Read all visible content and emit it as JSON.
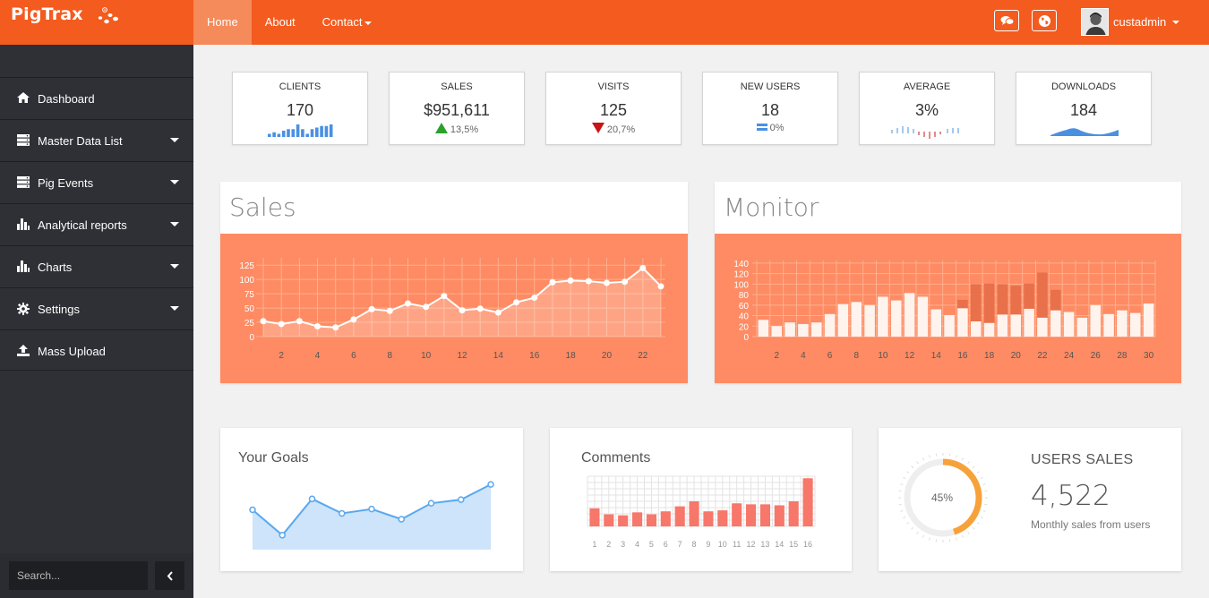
{
  "brand": {
    "name": "PigTrax"
  },
  "nav": {
    "items": [
      "Home",
      "About",
      "Contact"
    ]
  },
  "user": {
    "name": "custadmin"
  },
  "sidebar": {
    "items": [
      {
        "label": "Dashboard",
        "icon": "home-icon"
      },
      {
        "label": "Master Data List",
        "icon": "server-icon"
      },
      {
        "label": "Pig Events",
        "icon": "server-icon"
      },
      {
        "label": "Analytical reports",
        "icon": "bar-chart-icon"
      },
      {
        "label": "Charts",
        "icon": "bar-chart-icon"
      },
      {
        "label": "Settings",
        "icon": "gear-icon"
      },
      {
        "label": "Mass Upload",
        "icon": "upload-icon"
      }
    ],
    "search_placeholder": "Search..."
  },
  "stats": [
    {
      "title": "CLIENTS",
      "value": "170",
      "spark": [
        2,
        3,
        2,
        4,
        5,
        5,
        8,
        5,
        2,
        5,
        6,
        7,
        7,
        8
      ]
    },
    {
      "title": "SALES",
      "value": "$951,611",
      "change": "13,5%",
      "trend": "up"
    },
    {
      "title": "VISITS",
      "value": "125",
      "change": "20,7%",
      "trend": "down"
    },
    {
      "title": "NEW USERS",
      "value": "18",
      "change": "0%",
      "trend": "flat"
    },
    {
      "title": "AVERAGE",
      "value": "3%"
    },
    {
      "title": "DOWNLOADS",
      "value": "184"
    }
  ],
  "colors": {
    "accent": "#f35b1f",
    "panel": "#fe8b63",
    "up": "#2aa22a",
    "down": "#c81414",
    "blue": "#4a90e2",
    "donut": "#f7a13a"
  },
  "sales": {
    "title": "Sales",
    "chart_data": {
      "type": "area",
      "x": [
        1,
        2,
        3,
        4,
        5,
        6,
        7,
        8,
        9,
        10,
        11,
        12,
        13,
        14,
        15,
        16,
        17,
        18,
        19,
        20,
        21,
        22,
        23
      ],
      "values": [
        27,
        22,
        27,
        18,
        16,
        30,
        48,
        45,
        58,
        52,
        71,
        46,
        49,
        42,
        60,
        68,
        95,
        98,
        97,
        94,
        96,
        120,
        88
      ],
      "xticks": [
        "2",
        "4",
        "6",
        "8",
        "10",
        "12",
        "14",
        "16",
        "18",
        "20",
        "22"
      ],
      "yticks": [
        "0",
        "25",
        "50",
        "75",
        "100",
        "125"
      ],
      "ylim": [
        0,
        130
      ]
    }
  },
  "monitor": {
    "title": "Monitor",
    "chart_data": {
      "type": "bar",
      "x": [
        1,
        2,
        3,
        4,
        5,
        6,
        7,
        8,
        9,
        10,
        11,
        12,
        13,
        14,
        15,
        16,
        17,
        18,
        19,
        20,
        21,
        22,
        23,
        24,
        25,
        26,
        27,
        28,
        29,
        30
      ],
      "series": [
        {
          "values": [
            32,
            20,
            27,
            24,
            27,
            43,
            62,
            66,
            60,
            76,
            69,
            83,
            76,
            52,
            41,
            54,
            29,
            26,
            42,
            42,
            53,
            36,
            50,
            47,
            36,
            60,
            43,
            50,
            45,
            63
          ]
        },
        {
          "values": [
            0,
            0,
            0,
            0,
            0,
            0,
            0,
            0,
            0,
            0,
            0,
            68,
            0,
            0,
            0,
            70,
            100,
            101,
            100,
            97,
            101,
            122,
            89,
            0,
            0,
            0,
            0,
            0,
            0,
            0
          ]
        }
      ],
      "xticks": [
        "2",
        "4",
        "6",
        "8",
        "10",
        "12",
        "14",
        "16",
        "18",
        "20",
        "22",
        "24",
        "26",
        "28",
        "30"
      ],
      "yticks": [
        "0",
        "20",
        "40",
        "60",
        "80",
        "100",
        "120",
        "140"
      ],
      "ylim": [
        0,
        145
      ]
    }
  },
  "goals": {
    "title": "Your Goals",
    "chart_data": {
      "type": "area",
      "values": [
        55,
        20,
        70,
        50,
        56,
        42,
        64,
        69,
        90
      ]
    }
  },
  "comments": {
    "title": "Comments",
    "chart_data": {
      "type": "bar",
      "categories": [
        "1",
        "2",
        "3",
        "4",
        "5",
        "6",
        "7",
        "8",
        "9",
        "10",
        "11",
        "12",
        "13",
        "14",
        "15",
        "16"
      ],
      "values": [
        18,
        12,
        11,
        14,
        12,
        15,
        20,
        25,
        15,
        16,
        23,
        22,
        22,
        21,
        25,
        48
      ]
    }
  },
  "users_sales": {
    "title": "USERS SALES",
    "value": "4,522",
    "subtitle": "Monthly sales from users",
    "percent_label": "45%",
    "percent": 45
  }
}
